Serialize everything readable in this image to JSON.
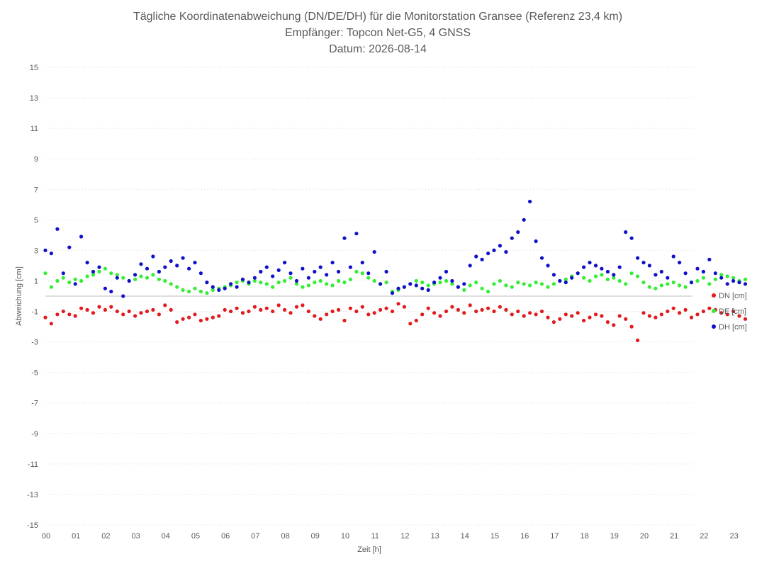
{
  "chart_data": {
    "type": "scatter",
    "title": [
      "Tägliche Koordinatenabweichung (DN/DE/DH) für die Monitorstation Gransee (Referenz 23,4 km)",
      "Empfänger: Topcon Net-G5, 4 GNSS",
      "Datum: 2026-08-14"
    ],
    "xlabel": "Zeit [h]",
    "ylabel": "Abweichung [cm]",
    "xlim": [
      0,
      24
    ],
    "ylim": [
      -15,
      15
    ],
    "x_ticks": [
      "00",
      "01",
      "02",
      "03",
      "04",
      "05",
      "06",
      "07",
      "08",
      "09",
      "10",
      "11",
      "12",
      "13",
      "14",
      "15",
      "16",
      "17",
      "18",
      "19",
      "20",
      "21",
      "22",
      "23"
    ],
    "y_ticks": [
      15,
      13,
      11,
      9,
      7,
      5,
      3,
      1,
      -1,
      -3,
      -5,
      -7,
      -9,
      -11,
      -13,
      -15
    ],
    "grid": "horizontal-dotted",
    "legend_position": "right",
    "series": [
      {
        "name": "DN [cm]",
        "color": "#e31a1c",
        "x": [
          0.0,
          0.2,
          0.4,
          0.6,
          0.8,
          1.0,
          1.2,
          1.4,
          1.6,
          1.8,
          2.0,
          2.2,
          2.4,
          2.6,
          2.8,
          3.0,
          3.2,
          3.4,
          3.6,
          3.8,
          4.0,
          4.2,
          4.4,
          4.6,
          4.8,
          5.0,
          5.2,
          5.4,
          5.6,
          5.8,
          6.0,
          6.2,
          6.4,
          6.6,
          6.8,
          7.0,
          7.2,
          7.4,
          7.6,
          7.8,
          8.0,
          8.2,
          8.4,
          8.6,
          8.8,
          9.0,
          9.2,
          9.4,
          9.6,
          9.8,
          10.0,
          10.2,
          10.4,
          10.6,
          10.8,
          11.0,
          11.2,
          11.4,
          11.6,
          11.8,
          12.0,
          12.2,
          12.4,
          12.6,
          12.8,
          13.0,
          13.2,
          13.4,
          13.6,
          13.8,
          14.0,
          14.2,
          14.4,
          14.6,
          14.8,
          15.0,
          15.2,
          15.4,
          15.6,
          15.8,
          16.0,
          16.2,
          16.4,
          16.6,
          16.8,
          17.0,
          17.2,
          17.4,
          17.6,
          17.8,
          18.0,
          18.2,
          18.4,
          18.6,
          18.8,
          19.0,
          19.2,
          19.4,
          19.6,
          19.8,
          20.0,
          20.2,
          20.4,
          20.6,
          20.8,
          21.0,
          21.2,
          21.4,
          21.6,
          21.8,
          22.0,
          22.2,
          22.4,
          22.6,
          22.8,
          23.0,
          23.2,
          23.4
        ],
        "y": [
          -1.4,
          -1.8,
          -1.2,
          -1.0,
          -1.2,
          -1.3,
          -0.8,
          -0.9,
          -1.1,
          -0.7,
          -0.9,
          -0.7,
          -1.0,
          -1.2,
          -1.0,
          -1.3,
          -1.1,
          -1.0,
          -0.9,
          -1.2,
          -0.6,
          -0.9,
          -1.7,
          -1.5,
          -1.4,
          -1.2,
          -1.6,
          -1.5,
          -1.4,
          -1.3,
          -0.9,
          -1.0,
          -0.8,
          -1.1,
          -1.0,
          -0.7,
          -0.9,
          -0.8,
          -1.0,
          -0.6,
          -0.9,
          -1.1,
          -0.7,
          -0.6,
          -1.0,
          -1.3,
          -1.5,
          -1.2,
          -1.0,
          -0.9,
          -1.6,
          -0.8,
          -1.0,
          -0.7,
          -1.2,
          -1.1,
          -0.9,
          -0.8,
          -1.0,
          -0.5,
          -0.7,
          -1.8,
          -1.6,
          -1.2,
          -0.8,
          -1.1,
          -1.3,
          -1.0,
          -0.7,
          -0.9,
          -1.1,
          -0.6,
          -1.0,
          -0.9,
          -0.8,
          -1.0,
          -0.7,
          -0.9,
          -1.2,
          -1.0,
          -1.3,
          -1.1,
          -1.2,
          -1.0,
          -1.4,
          -1.7,
          -1.5,
          -1.2,
          -1.3,
          -1.1,
          -1.6,
          -1.4,
          -1.2,
          -1.3,
          -1.7,
          -1.9,
          -1.3,
          -1.5,
          -2.0,
          -2.9,
          -1.1,
          -1.3,
          -1.4,
          -1.2,
          -1.0,
          -0.8,
          -1.1,
          -0.9,
          -1.4,
          -1.2,
          -1.0,
          -0.8,
          -0.9,
          -1.1,
          -1.2,
          -1.0,
          -1.3,
          -1.5
        ]
      },
      {
        "name": "DE [cm]",
        "color": "#33ee33",
        "x": [
          0.0,
          0.2,
          0.4,
          0.6,
          0.8,
          1.0,
          1.2,
          1.4,
          1.6,
          1.8,
          2.0,
          2.2,
          2.4,
          2.6,
          2.8,
          3.0,
          3.2,
          3.4,
          3.6,
          3.8,
          4.0,
          4.2,
          4.4,
          4.6,
          4.8,
          5.0,
          5.2,
          5.4,
          5.6,
          5.8,
          6.0,
          6.2,
          6.4,
          6.6,
          6.8,
          7.0,
          7.2,
          7.4,
          7.6,
          7.8,
          8.0,
          8.2,
          8.4,
          8.6,
          8.8,
          9.0,
          9.2,
          9.4,
          9.6,
          9.8,
          10.0,
          10.2,
          10.4,
          10.6,
          10.8,
          11.0,
          11.2,
          11.4,
          11.6,
          11.8,
          12.0,
          12.2,
          12.4,
          12.6,
          12.8,
          13.0,
          13.2,
          13.4,
          13.6,
          13.8,
          14.0,
          14.2,
          14.4,
          14.6,
          14.8,
          15.0,
          15.2,
          15.4,
          15.6,
          15.8,
          16.0,
          16.2,
          16.4,
          16.6,
          16.8,
          17.0,
          17.2,
          17.4,
          17.6,
          17.8,
          18.0,
          18.2,
          18.4,
          18.6,
          18.8,
          19.0,
          19.2,
          19.4,
          19.6,
          19.8,
          20.0,
          20.2,
          20.4,
          20.6,
          20.8,
          21.0,
          21.2,
          21.4,
          21.6,
          21.8,
          22.0,
          22.2,
          22.4,
          22.6,
          22.8,
          23.0,
          23.2,
          23.4
        ],
        "y": [
          1.5,
          0.6,
          1.0,
          1.2,
          0.9,
          1.1,
          1.0,
          1.3,
          1.4,
          1.6,
          1.8,
          1.5,
          1.4,
          1.2,
          1.0,
          1.1,
          1.3,
          1.2,
          1.4,
          1.1,
          1.0,
          0.8,
          0.6,
          0.4,
          0.3,
          0.5,
          0.3,
          0.2,
          0.4,
          0.5,
          0.6,
          0.7,
          0.9,
          1.0,
          0.8,
          1.0,
          0.9,
          0.8,
          0.6,
          0.9,
          1.0,
          1.2,
          0.8,
          0.6,
          0.7,
          0.9,
          1.0,
          0.8,
          0.7,
          1.0,
          0.9,
          1.1,
          1.6,
          1.5,
          1.2,
          1.0,
          0.8,
          0.9,
          0.3,
          0.4,
          0.6,
          0.8,
          1.0,
          0.9,
          0.7,
          0.8,
          0.9,
          1.0,
          0.8,
          0.6,
          0.4,
          0.7,
          0.9,
          0.5,
          0.3,
          0.8,
          1.0,
          0.7,
          0.6,
          0.9,
          0.8,
          0.7,
          0.9,
          0.8,
          0.6,
          0.8,
          1.0,
          1.1,
          1.3,
          1.5,
          1.2,
          1.0,
          1.3,
          1.4,
          1.1,
          1.2,
          1.0,
          0.8,
          1.5,
          1.3,
          0.9,
          0.6,
          0.5,
          0.7,
          0.8,
          0.9,
          0.7,
          0.6,
          0.9,
          1.0,
          1.2,
          0.8,
          1.1,
          1.4,
          1.3,
          1.2,
          1.0,
          1.1
        ]
      },
      {
        "name": "DH [cm]",
        "color": "#1010c8",
        "x": [
          0.0,
          0.2,
          0.4,
          0.6,
          0.8,
          1.0,
          1.2,
          1.4,
          1.6,
          1.8,
          2.0,
          2.2,
          2.4,
          2.6,
          2.8,
          3.0,
          3.2,
          3.4,
          3.6,
          3.8,
          4.0,
          4.2,
          4.4,
          4.6,
          4.8,
          5.0,
          5.2,
          5.4,
          5.6,
          5.8,
          6.0,
          6.2,
          6.4,
          6.6,
          6.8,
          7.0,
          7.2,
          7.4,
          7.6,
          7.8,
          8.0,
          8.2,
          8.4,
          8.6,
          8.8,
          9.0,
          9.2,
          9.4,
          9.6,
          9.8,
          10.0,
          10.2,
          10.4,
          10.6,
          10.8,
          11.0,
          11.2,
          11.4,
          11.6,
          11.8,
          12.0,
          12.2,
          12.4,
          12.6,
          12.8,
          13.0,
          13.2,
          13.4,
          13.6,
          13.8,
          14.0,
          14.2,
          14.4,
          14.6,
          14.8,
          15.0,
          15.2,
          15.4,
          15.6,
          15.8,
          16.0,
          16.2,
          16.4,
          16.6,
          16.8,
          17.0,
          17.2,
          17.4,
          17.6,
          17.8,
          18.0,
          18.2,
          18.4,
          18.6,
          18.8,
          19.0,
          19.2,
          19.4,
          19.6,
          19.8,
          20.0,
          20.2,
          20.4,
          20.6,
          20.8,
          21.0,
          21.2,
          21.4,
          21.6,
          21.8,
          22.0,
          22.2,
          22.4,
          22.6,
          22.8,
          23.0,
          23.2,
          23.4
        ],
        "y": [
          3.0,
          2.8,
          4.4,
          1.5,
          3.2,
          0.8,
          3.9,
          2.2,
          1.6,
          1.9,
          0.5,
          0.3,
          1.2,
          0.0,
          1.0,
          1.4,
          2.1,
          1.8,
          2.6,
          1.6,
          1.9,
          2.3,
          2.0,
          2.5,
          1.8,
          2.2,
          1.5,
          0.9,
          0.6,
          0.4,
          0.5,
          0.8,
          0.6,
          1.1,
          0.9,
          1.2,
          1.6,
          1.9,
          1.3,
          1.7,
          2.2,
          1.5,
          1.0,
          1.8,
          1.2,
          1.6,
          1.9,
          1.4,
          2.2,
          1.6,
          3.8,
          1.9,
          4.1,
          2.2,
          1.5,
          2.9,
          0.8,
          1.6,
          0.2,
          0.5,
          0.6,
          0.8,
          0.7,
          0.5,
          0.4,
          0.9,
          1.2,
          1.6,
          1.0,
          0.6,
          0.8,
          2.0,
          2.6,
          2.4,
          2.8,
          3.0,
          3.3,
          2.9,
          3.8,
          4.2,
          5.0,
          6.2,
          3.6,
          2.5,
          2.0,
          1.4,
          1.0,
          0.9,
          1.2,
          1.5,
          1.9,
          2.2,
          2.0,
          1.8,
          1.6,
          1.4,
          1.9,
          4.2,
          3.8,
          2.5,
          2.2,
          2.0,
          1.4,
          1.6,
          1.2,
          2.6,
          2.2,
          1.5,
          0.9,
          1.8,
          1.6,
          2.4,
          1.5,
          1.2,
          0.8,
          1.0,
          0.9,
          0.8
        ]
      }
    ]
  }
}
